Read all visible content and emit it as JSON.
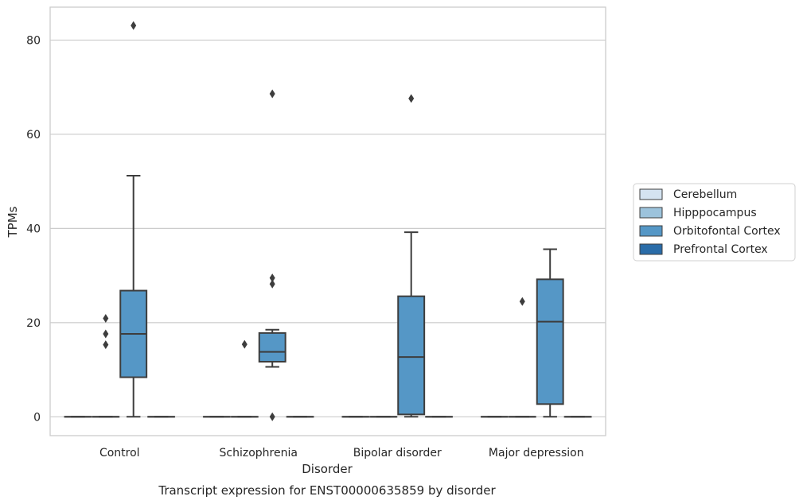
{
  "chart_data": {
    "type": "box",
    "title": "",
    "caption": "Transcript expression for ENST00000635859 by disorder",
    "xlabel": "Disorder",
    "ylabel": "TPMs",
    "ylim": [
      -4,
      87
    ],
    "yticks": [
      0,
      20,
      40,
      60,
      80
    ],
    "grid": "y",
    "legend_position": "right",
    "categories": [
      "Control",
      "Schizophrenia",
      "Bipolar disorder",
      "Major depression"
    ],
    "series": [
      {
        "name": "Cerebellum",
        "color": "#d4e3f1",
        "boxes": [
          {
            "q1": 0,
            "median": 0,
            "q3": 0,
            "whisker_low": 0,
            "whisker_high": 0,
            "outliers": []
          },
          {
            "q1": 0,
            "median": 0,
            "q3": 0,
            "whisker_low": 0,
            "whisker_high": 0,
            "outliers": []
          },
          {
            "q1": 0,
            "median": 0,
            "q3": 0,
            "whisker_low": 0,
            "whisker_high": 0,
            "outliers": []
          },
          {
            "q1": 0,
            "median": 0,
            "q3": 0,
            "whisker_low": 0,
            "whisker_high": 0,
            "outliers": []
          }
        ]
      },
      {
        "name": "Hipppocampus",
        "color": "#9cc3dc",
        "boxes": [
          {
            "q1": 0,
            "median": 0,
            "q3": 0,
            "whisker_low": 0,
            "whisker_high": 0,
            "outliers": [
              15.3,
              17.6,
              20.9
            ]
          },
          {
            "q1": 0,
            "median": 0,
            "q3": 0,
            "whisker_low": 0,
            "whisker_high": 0,
            "outliers": [
              15.4
            ]
          },
          {
            "q1": 0,
            "median": 0,
            "q3": 0,
            "whisker_low": 0,
            "whisker_high": 0,
            "outliers": []
          },
          {
            "q1": 0,
            "median": 0,
            "q3": 0,
            "whisker_low": 0,
            "whisker_high": 0,
            "outliers": [
              24.5
            ]
          }
        ]
      },
      {
        "name": "Orbitofontal Cortex",
        "color": "#5597c6",
        "boxes": [
          {
            "q1": 8.4,
            "median": 17.6,
            "q3": 26.8,
            "whisker_low": 0,
            "whisker_high": 51.2,
            "outliers": [
              83.1
            ]
          },
          {
            "q1": 11.7,
            "median": 13.8,
            "q3": 17.8,
            "whisker_low": 10.6,
            "whisker_high": 18.5,
            "outliers": [
              0,
              28.2,
              29.5,
              68.6
            ]
          },
          {
            "q1": 0.5,
            "median": 12.7,
            "q3": 25.6,
            "whisker_low": 0,
            "whisker_high": 39.2,
            "outliers": [
              67.6
            ]
          },
          {
            "q1": 2.7,
            "median": 20.2,
            "q3": 29.2,
            "whisker_low": 0,
            "whisker_high": 35.6,
            "outliers": []
          }
        ]
      },
      {
        "name": "Prefrontal Cortex",
        "color": "#2a6ca8",
        "boxes": [
          {
            "q1": 0,
            "median": 0,
            "q3": 0,
            "whisker_low": 0,
            "whisker_high": 0,
            "outliers": []
          },
          {
            "q1": 0,
            "median": 0,
            "q3": 0,
            "whisker_low": 0,
            "whisker_high": 0,
            "outliers": []
          },
          {
            "q1": 0,
            "median": 0,
            "q3": 0,
            "whisker_low": 0,
            "whisker_high": 0,
            "outliers": []
          },
          {
            "q1": 0,
            "median": 0,
            "q3": 0,
            "whisker_low": 0,
            "whisker_high": 0,
            "outliers": []
          }
        ]
      }
    ]
  }
}
